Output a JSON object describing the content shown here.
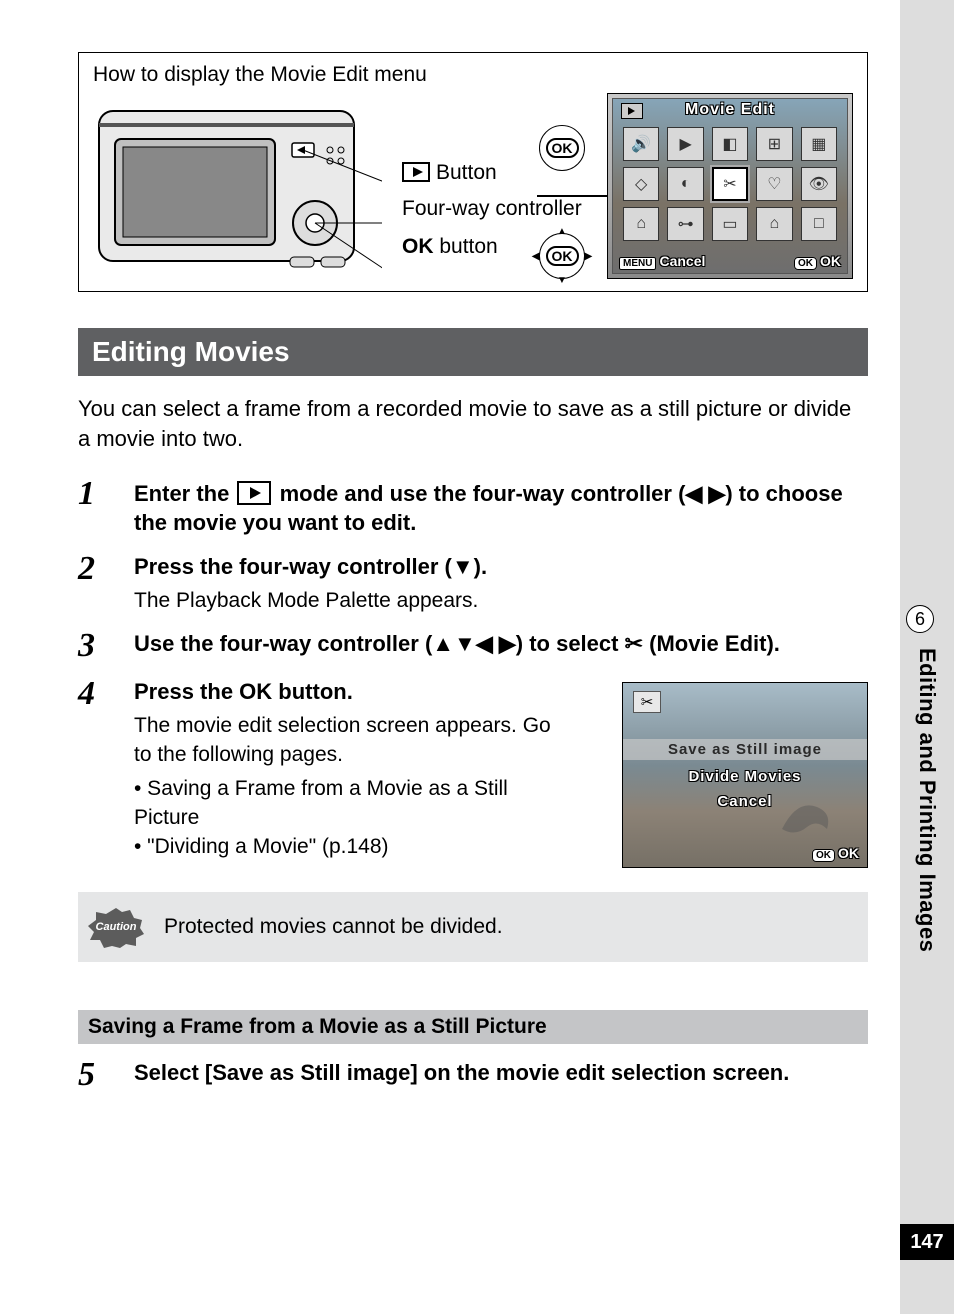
{
  "diagram": {
    "title": "How to display the Movie Edit menu",
    "callouts": {
      "play_button": "Button",
      "four_way": "Four-way controller",
      "ok_button_prefix": "OK",
      "ok_button_text": "button"
    },
    "ok_badge": "OK"
  },
  "lcd1": {
    "title": "Movie Edit",
    "menu_label": "MENU",
    "cancel": "Cancel",
    "ok_badge": "OK",
    "ok_text": "OK",
    "icons": [
      "🔊",
      "▶",
      "◧",
      "⊞",
      "▦",
      "◇",
      "◐",
      "✂",
      "♡",
      "👁",
      "⌂",
      "⊶",
      "▭",
      "⌂",
      "□"
    ],
    "selected_index": 7
  },
  "section": {
    "heading": "Editing Movies",
    "intro": "You can select a frame from a recorded movie to save as a still picture or divide a movie into two."
  },
  "steps": [
    {
      "num": "1",
      "title_before": "Enter the ",
      "title_after": " mode and use the four-way controller (◀ ▶) to choose the movie you want to edit."
    },
    {
      "num": "2",
      "title": "Press the four-way controller (▼).",
      "sub": "The Playback Mode Palette appears."
    },
    {
      "num": "3",
      "title": "Use the four-way controller (▲▼◀ ▶) to select ✂ (Movie Edit)."
    },
    {
      "num": "4",
      "title_before": "Press the ",
      "title_ok": "OK",
      "title_after": " button.",
      "sub1": "The movie edit selection screen appears. Go to the following pages.",
      "b1": "•  Saving a Frame from a Movie as a Still Picture",
      "b2": "•  \"Dividing a Movie\" (p.148)"
    },
    {
      "num": "5",
      "title": "Select [Save as Still image] on the movie edit selection screen."
    }
  ],
  "lcd2": {
    "opt1": "Save as Still image",
    "opt2": "Divide Movies",
    "opt3": "Cancel",
    "ok_badge": "OK",
    "ok_text": "OK"
  },
  "caution": {
    "label": "Caution",
    "text": "Protected movies cannot be divided."
  },
  "sub_heading": "Saving a Frame from a Movie as a Still Picture",
  "side": {
    "chapter_num": "6",
    "chapter_label": "Editing and Printing Images",
    "page_num": "147"
  },
  "colors": {
    "section_bar": "#5f6062",
    "sub_bar": "#c4c5c7",
    "caution_bg": "#e5e6e7",
    "side_strip": "#dddddd"
  }
}
